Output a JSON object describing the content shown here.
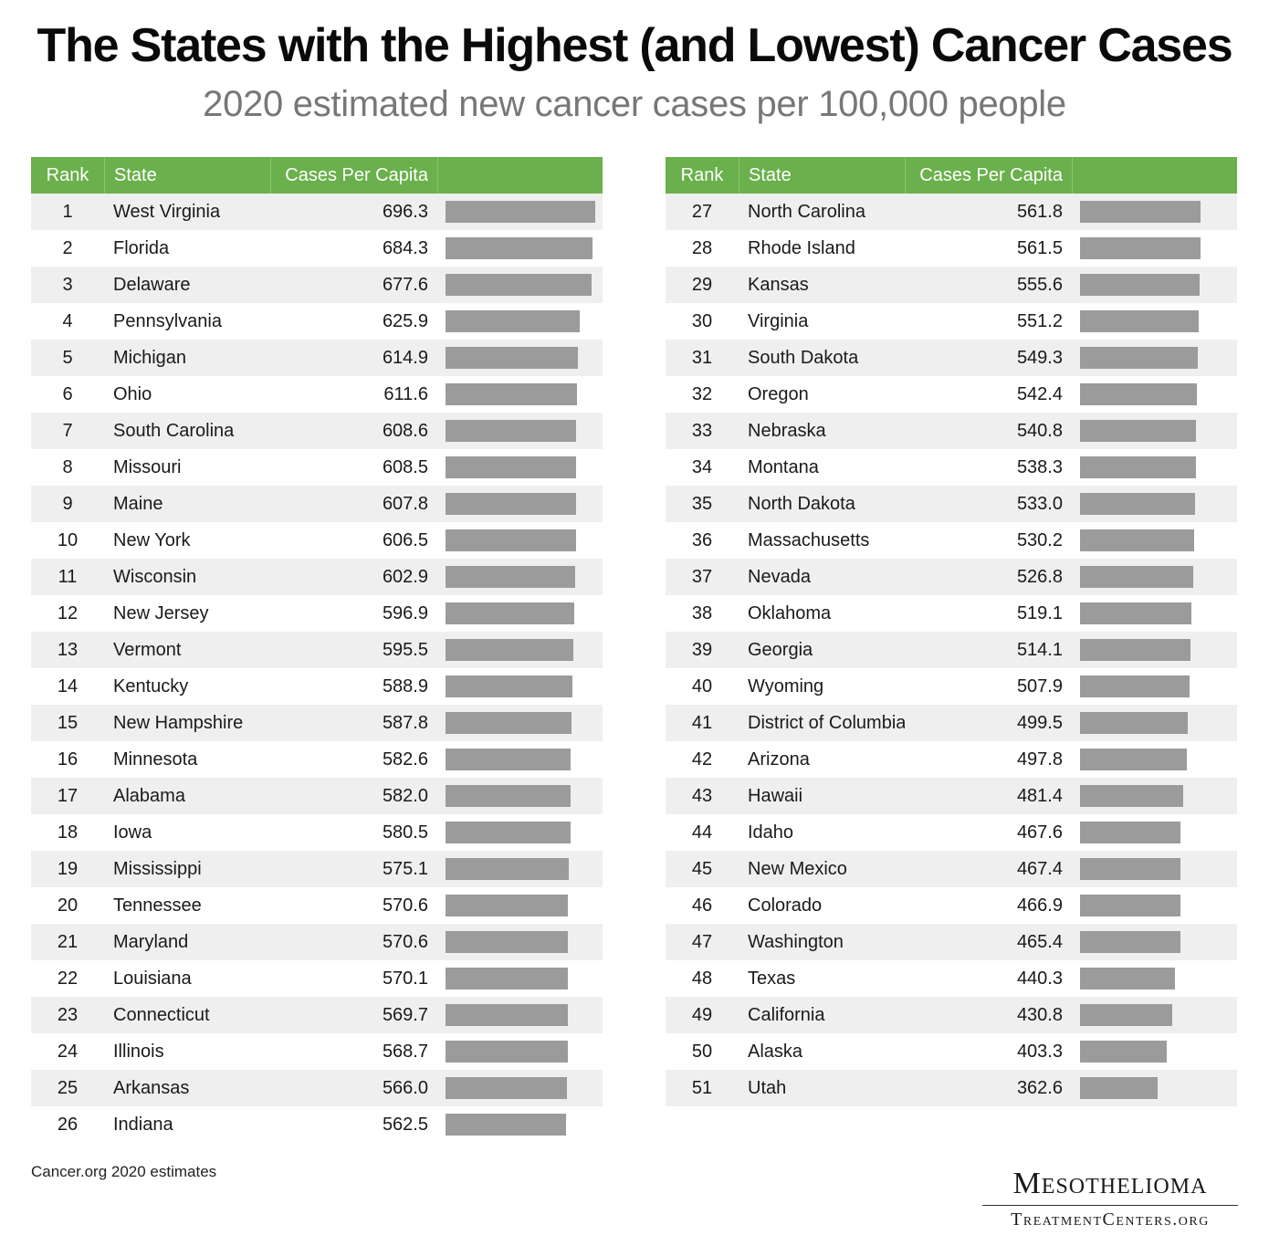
{
  "title": "The States with the Highest (and Lowest) Cancer Cases",
  "subtitle": "2020 estimated new cancer cases per 100,000 people",
  "columns": {
    "rank": "Rank",
    "state": "State",
    "value": "Cases Per Capita"
  },
  "footnote": "Cancer.org 2020 estimates",
  "logo": {
    "line1": "Mesothelioma",
    "line2": "TreatmentCenters.org"
  },
  "colors": {
    "header": "#6ab04c",
    "bar": "#9b9b9b",
    "stripe": "#efefef"
  },
  "chart_data": {
    "type": "table",
    "bar_max": 696.3,
    "left": [
      {
        "rank": "1",
        "state": "West Virginia",
        "value": "696.3"
      },
      {
        "rank": "2",
        "state": "Florida",
        "value": "684.3"
      },
      {
        "rank": "3",
        "state": "Delaware",
        "value": "677.6"
      },
      {
        "rank": "4",
        "state": "Pennsylvania",
        "value": "625.9"
      },
      {
        "rank": "5",
        "state": "Michigan",
        "value": "614.9"
      },
      {
        "rank": "6",
        "state": "Ohio",
        "value": "611.6"
      },
      {
        "rank": "7",
        "state": "South Carolina",
        "value": "608.6"
      },
      {
        "rank": "8",
        "state": "Missouri",
        "value": "608.5"
      },
      {
        "rank": "9",
        "state": "Maine",
        "value": "607.8"
      },
      {
        "rank": "10",
        "state": "New York",
        "value": "606.5"
      },
      {
        "rank": "11",
        "state": "Wisconsin",
        "value": "602.9"
      },
      {
        "rank": "12",
        "state": "New Jersey",
        "value": "596.9"
      },
      {
        "rank": "13",
        "state": "Vermont",
        "value": "595.5"
      },
      {
        "rank": "14",
        "state": "Kentucky",
        "value": "588.9"
      },
      {
        "rank": "15",
        "state": "New Hampshire",
        "value": "587.8"
      },
      {
        "rank": "16",
        "state": "Minnesota",
        "value": "582.6"
      },
      {
        "rank": "17",
        "state": "Alabama",
        "value": "582.0"
      },
      {
        "rank": "18",
        "state": "Iowa",
        "value": "580.5"
      },
      {
        "rank": "19",
        "state": "Mississippi",
        "value": "575.1"
      },
      {
        "rank": "20",
        "state": "Tennessee",
        "value": "570.6"
      },
      {
        "rank": "21",
        "state": "Maryland",
        "value": "570.6"
      },
      {
        "rank": "22",
        "state": "Louisiana",
        "value": "570.1"
      },
      {
        "rank": "23",
        "state": "Connecticut",
        "value": "569.7"
      },
      {
        "rank": "24",
        "state": "Illinois",
        "value": "568.7"
      },
      {
        "rank": "25",
        "state": "Arkansas",
        "value": "566.0"
      },
      {
        "rank": "26",
        "state": "Indiana",
        "value": "562.5"
      }
    ],
    "right": [
      {
        "rank": "27",
        "state": "North Carolina",
        "value": "561.8"
      },
      {
        "rank": "28",
        "state": "Rhode Island",
        "value": "561.5"
      },
      {
        "rank": "29",
        "state": "Kansas",
        "value": "555.6"
      },
      {
        "rank": "30",
        "state": "Virginia",
        "value": "551.2"
      },
      {
        "rank": "31",
        "state": "South Dakota",
        "value": "549.3"
      },
      {
        "rank": "32",
        "state": "Oregon",
        "value": "542.4"
      },
      {
        "rank": "33",
        "state": "Nebraska",
        "value": "540.8"
      },
      {
        "rank": "34",
        "state": "Montana",
        "value": "538.3"
      },
      {
        "rank": "35",
        "state": "North Dakota",
        "value": "533.0"
      },
      {
        "rank": "36",
        "state": "Massachusetts",
        "value": "530.2"
      },
      {
        "rank": "37",
        "state": "Nevada",
        "value": "526.8"
      },
      {
        "rank": "38",
        "state": "Oklahoma",
        "value": "519.1"
      },
      {
        "rank": "39",
        "state": "Georgia",
        "value": "514.1"
      },
      {
        "rank": "40",
        "state": "Wyoming",
        "value": "507.9"
      },
      {
        "rank": "41",
        "state": "District of Columbia",
        "value": "499.5"
      },
      {
        "rank": "42",
        "state": "Arizona",
        "value": "497.8"
      },
      {
        "rank": "43",
        "state": "Hawaii",
        "value": "481.4"
      },
      {
        "rank": "44",
        "state": "Idaho",
        "value": "467.6"
      },
      {
        "rank": "45",
        "state": "New Mexico",
        "value": "467.4"
      },
      {
        "rank": "46",
        "state": "Colorado",
        "value": "466.9"
      },
      {
        "rank": "47",
        "state": "Washington",
        "value": "465.4"
      },
      {
        "rank": "48",
        "state": "Texas",
        "value": "440.3"
      },
      {
        "rank": "49",
        "state": "California",
        "value": "430.8"
      },
      {
        "rank": "50",
        "state": "Alaska",
        "value": "403.3"
      },
      {
        "rank": "51",
        "state": "Utah",
        "value": "362.6"
      }
    ]
  }
}
